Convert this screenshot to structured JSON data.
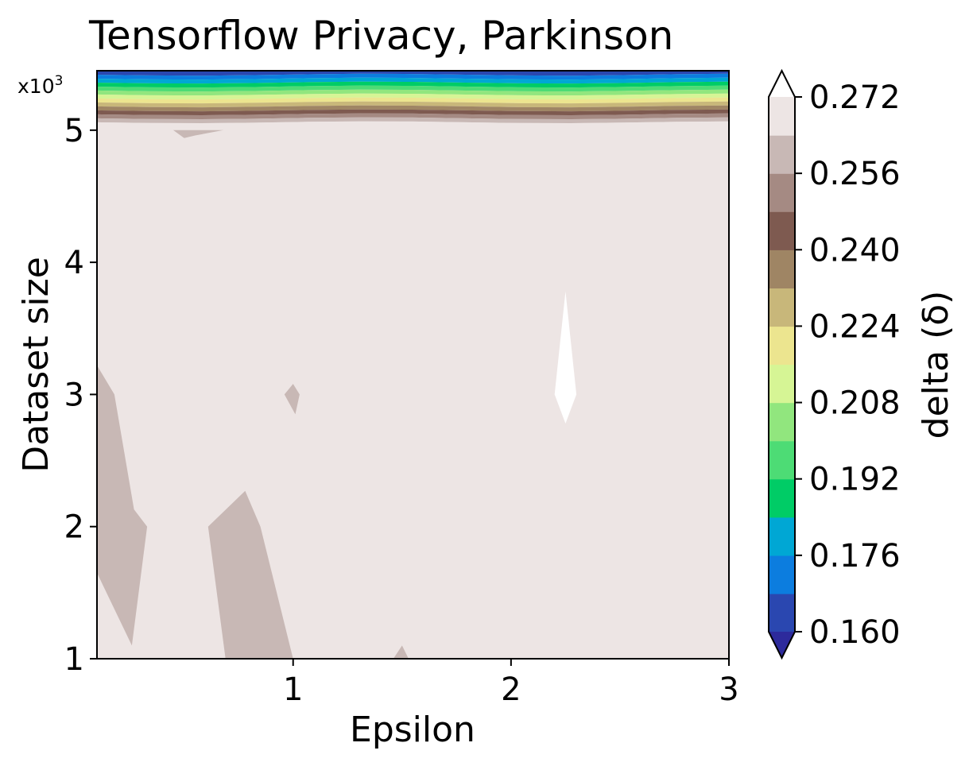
{
  "chart_data": {
    "type": "contour",
    "title": "Tensorflow Privacy, Parkinson",
    "xlabel": "Epsilon",
    "ylabel": "Dataset size",
    "y_multiplier_label": "x10",
    "y_multiplier_exp": "3",
    "xlim": [
      0.1,
      3
    ],
    "ylim": [
      1,
      5.45
    ],
    "x_ticks": [
      1,
      2,
      3
    ],
    "x_tick_labels": [
      "1",
      "2",
      "3"
    ],
    "y_ticks": [
      1,
      2,
      3,
      4,
      5
    ],
    "y_tick_labels": [
      "1",
      "2",
      "3",
      "4",
      "5"
    ],
    "colorbar": {
      "label": "delta (δ)",
      "min": 0.16,
      "max": 0.272,
      "extend": "both",
      "tick_values": [
        0.16,
        0.176,
        0.192,
        0.208,
        0.224,
        0.24,
        0.256,
        0.272
      ],
      "tick_labels": [
        "0.160",
        "0.176",
        "0.192",
        "0.208",
        "0.224",
        "0.240",
        "0.256",
        "0.272"
      ],
      "level_colors": [
        "#2a47b0",
        "#0c7ddf",
        "#00a7d4",
        "#00cc66",
        "#4ddc75",
        "#91e67e",
        "#d6f595",
        "#ece58f",
        "#c8b77a",
        "#9f8564",
        "#7e5a50",
        "#a58a83",
        "#c8b8b5",
        "#ede5e4"
      ],
      "under_color": "#2d2a9c",
      "over_color": "#ffffff"
    },
    "bands": {
      "note_levels": "horizontal contour bands near top of y-range",
      "band_y_top": [
        5.45,
        5.42,
        5.39,
        5.36,
        5.33,
        5.3,
        5.27,
        5.24,
        5.21,
        5.18,
        5.15,
        5.12,
        5.09,
        5.06
      ],
      "band_y_bottom": [
        5.42,
        5.39,
        5.36,
        5.33,
        5.3,
        5.27,
        5.24,
        5.21,
        5.18,
        5.15,
        5.12,
        5.09,
        5.06,
        5.0
      ]
    },
    "regions": [
      {
        "level": 0.264,
        "color": "#c8b8b5",
        "points": [
          [
            0.1,
            3.22
          ],
          [
            0.18,
            3.0
          ],
          [
            0.27,
            2.13
          ],
          [
            0.33,
            2.0
          ],
          [
            0.26,
            1.1
          ],
          [
            0.1,
            1.65
          ]
        ]
      },
      {
        "level": 0.264,
        "color": "#c8b8b5",
        "points": [
          [
            0.61,
            2.0
          ],
          [
            0.78,
            2.27
          ],
          [
            0.85,
            2.0
          ],
          [
            1.0,
            1.0
          ],
          [
            0.69,
            1.0
          ]
        ]
      },
      {
        "level": 0.264,
        "color": "#c8b8b5",
        "points": [
          [
            0.96,
            3.0
          ],
          [
            1.0,
            3.08
          ],
          [
            1.03,
            3.0
          ],
          [
            1.01,
            2.85
          ]
        ]
      },
      {
        "level": 0.264,
        "color": "#c8b8b5",
        "points": [
          [
            1.46,
            1.0
          ],
          [
            1.5,
            1.1
          ],
          [
            1.53,
            1.0
          ]
        ]
      },
      {
        "level": 0.264,
        "color": "#c8b8b5",
        "points": [
          [
            0.45,
            5.0
          ],
          [
            0.5,
            4.94
          ],
          [
            0.55,
            4.96
          ],
          [
            0.68,
            5.0
          ]
        ]
      },
      {
        "level": 0.272,
        "color": "#ffffff",
        "points": [
          [
            2.2,
            3.0
          ],
          [
            2.25,
            3.78
          ],
          [
            2.3,
            3.0
          ],
          [
            2.25,
            2.78
          ]
        ]
      }
    ]
  }
}
